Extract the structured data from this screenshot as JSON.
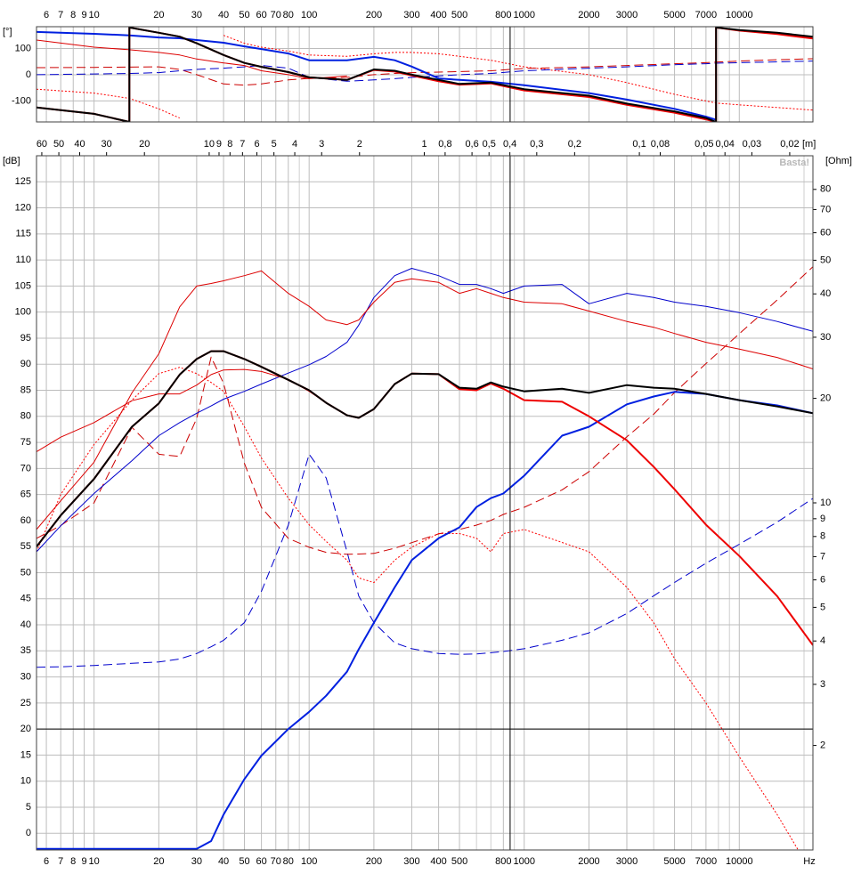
{
  "chart_data": [
    {
      "type": "line",
      "y_label": "[°]",
      "x_label_side": "top",
      "xscale": "log",
      "xlim": [
        5.4,
        22000
      ],
      "xticks": [
        6,
        7,
        8,
        9,
        10,
        20,
        30,
        40,
        50,
        60,
        70,
        80,
        100,
        200,
        300,
        400,
        500,
        800,
        1000,
        2000,
        3000,
        5000,
        7000,
        10000
      ],
      "xminor": [
        90,
        600,
        700,
        900,
        4000,
        6000,
        8000,
        9000,
        20000
      ],
      "ylim": [
        -180,
        183
      ],
      "yticks": [
        -100,
        0,
        100
      ],
      "grid": true,
      "cursor_x": 860,
      "x": [
        5.4,
        10,
        14.6,
        14.6,
        20,
        25,
        30,
        40,
        50,
        60,
        80,
        100,
        150,
        200,
        250,
        300,
        400,
        500,
        700,
        1000,
        2000,
        3000,
        5000,
        7000,
        7800,
        7800,
        10000,
        15000,
        22000
      ],
      "series": [
        {
          "color": "#ff0000",
          "width": 1,
          "dash": "dotted",
          "values": [
            -55,
            -70,
            -90,
            -90,
            -130,
            -165,
            null,
            150,
            120,
            105,
            90,
            75,
            70,
            80,
            85,
            85,
            80,
            70,
            55,
            30,
            0,
            -30,
            -75,
            -100,
            -108,
            -108,
            -115,
            -125,
            -135
          ]
        },
        {
          "color": "#cc0000",
          "width": 1,
          "dash": "dashed",
          "values": [
            27,
            28,
            29,
            29,
            30,
            20,
            0,
            -35,
            -40,
            -35,
            -20,
            -14,
            -10,
            0,
            5,
            8,
            10,
            12,
            15,
            24,
            30,
            35,
            42,
            46,
            48,
            48,
            52,
            57,
            61
          ]
        },
        {
          "color": "#0000cc",
          "width": 1,
          "dash": "dashed",
          "values": [
            0,
            3,
            5,
            5,
            8,
            15,
            20,
            25,
            30,
            35,
            25,
            -10,
            -25,
            -20,
            -15,
            -10,
            -5,
            0,
            5,
            15,
            25,
            30,
            38,
            42,
            44,
            44,
            46,
            49,
            52
          ]
        },
        {
          "color": "#dd0000",
          "width": 1,
          "dash": "solid",
          "values": [
            132,
            105,
            95,
            95,
            85,
            75,
            60,
            45,
            35,
            15,
            0,
            -15,
            -5,
            null,
            null,
            null,
            null,
            null,
            null,
            null,
            null,
            null,
            null,
            null,
            null,
            null,
            null,
            null,
            null
          ]
        },
        {
          "color": "#0020e0",
          "width": 2,
          "dash": "solid",
          "values": [
            163,
            156,
            150,
            150,
            142,
            139,
            132,
            122,
            108,
            98,
            81,
            55,
            55,
            68,
            55,
            31,
            -14,
            -20,
            -27,
            -40,
            -70,
            -95,
            -130,
            -160,
            -172,
            null,
            null,
            null,
            null
          ]
        },
        {
          "color": "#ee0000",
          "width": 2,
          "dash": "solid",
          "values": [
            -125,
            -149,
            -180,
            180,
            160,
            145,
            120,
            75,
            45,
            30,
            10,
            -10,
            -20,
            18,
            12,
            -3,
            -25,
            -38,
            -33,
            -60,
            -85,
            -115,
            -145,
            -170,
            -180,
            180,
            168,
            155,
            138
          ]
        },
        {
          "color": "#000000",
          "width": 2,
          "dash": "solid",
          "values": [
            -125,
            -149,
            -180,
            180,
            160,
            145,
            120,
            75,
            45,
            30,
            10,
            -10,
            -20,
            20,
            15,
            0,
            -20,
            -35,
            -30,
            -55,
            -80,
            -110,
            -140,
            -165,
            -180,
            180,
            170,
            160,
            145
          ]
        }
      ]
    },
    {
      "type": "line",
      "y_label": "[dB]",
      "y2_label": "[Ohm]",
      "x2_label": "[m]",
      "x_label": "Hz",
      "watermark": "Basta!",
      "x_label_side": "bottom",
      "xscale": "log",
      "xlim": [
        5.4,
        22000
      ],
      "xticks": [
        6,
        7,
        8,
        9,
        10,
        20,
        30,
        40,
        50,
        60,
        70,
        80,
        100,
        200,
        300,
        400,
        500,
        800,
        1000,
        2000,
        3000,
        5000,
        7000,
        10000
      ],
      "xminor": [
        90,
        600,
        700,
        900,
        4000,
        6000,
        8000,
        9000,
        20000
      ],
      "x2lim": [
        63.5,
        0.0156
      ],
      "x2ticks": [
        60,
        50,
        40,
        30,
        20,
        10,
        9,
        8,
        7,
        6,
        5,
        4,
        3,
        2,
        1,
        {
          "value": 0.8,
          "label": "0,8"
        },
        {
          "value": 0.6,
          "label": "0,6"
        },
        {
          "value": 0.5,
          "label": "0,5"
        },
        {
          "value": 0.4,
          "label": "0,4"
        },
        {
          "value": 0.3,
          "label": "0,3"
        },
        {
          "value": 0.2,
          "label": "0,2"
        },
        {
          "value": 0.1,
          "label": "0,1"
        },
        {
          "value": 0.08,
          "label": "0,08"
        },
        {
          "value": 0.05,
          "label": "0,05"
        },
        {
          "value": 0.04,
          "label": "0,04"
        },
        {
          "value": 0.03,
          "label": "0,03"
        },
        {
          "value": 0.02,
          "label": "0,02"
        }
      ],
      "ylim": [
        -3.2,
        130
      ],
      "yticks": [
        0,
        5,
        10,
        15,
        20,
        25,
        30,
        35,
        40,
        45,
        50,
        55,
        60,
        65,
        70,
        75,
        80,
        85,
        90,
        95,
        100,
        105,
        110,
        115,
        120,
        125
      ],
      "y2scale": "log",
      "y2lim": [
        1,
        100
      ],
      "y2ticks": [
        2,
        3,
        4,
        5,
        6,
        7,
        8,
        9,
        10,
        20,
        30,
        40,
        50,
        60,
        70,
        80
      ],
      "grid": true,
      "cursor_x": 860,
      "hline_y": 20,
      "x": [
        5.4,
        7,
        10,
        15,
        20,
        25,
        30,
        35,
        40,
        50,
        60,
        80,
        100,
        120,
        150,
        170,
        200,
        250,
        300,
        400,
        500,
        600,
        700,
        800,
        1000,
        1500,
        2000,
        3000,
        4000,
        5000,
        7000,
        10000,
        15000,
        22000
      ],
      "series": [
        {
          "color": "#0000cc",
          "width": 1,
          "dash": "dashed",
          "axis": "y2",
          "values": [
            3.36,
            3.37,
            3.4,
            3.45,
            3.48,
            3.55,
            3.68,
            3.85,
            4.02,
            4.52,
            5.56,
            8.63,
            13.8,
            11.8,
            7.24,
            5.39,
            4.52,
            3.95,
            3.8,
            3.68,
            3.66,
            3.67,
            3.7,
            3.73,
            3.8,
            4.02,
            4.22,
            4.8,
            5.4,
            5.9,
            6.7,
            7.6,
            8.8,
            10.3
          ]
        },
        {
          "color": "#cc0000",
          "width": 1,
          "dash": "dashed",
          "axis": "y2",
          "values": [
            7.9,
            8.6,
            10,
            16.5,
            13.8,
            13.6,
            17.5,
            26.3,
            22.1,
            13,
            9.7,
            7.9,
            7.45,
            7.2,
            7.11,
            7.12,
            7.15,
            7.4,
            7.68,
            8.14,
            8.38,
            8.63,
            8.9,
            9.26,
            9.71,
            10.9,
            12.3,
            15.5,
            18,
            20.8,
            25.2,
            30.7,
            38.4,
            47.9
          ]
        },
        {
          "color": "#ff0000",
          "width": 1,
          "dash": "dotted",
          "values": [
            54,
            65,
            74.6,
            83.1,
            88.2,
            89.4,
            88.2,
            86.5,
            84.8,
            78,
            72,
            64.3,
            59.2,
            56,
            52.4,
            49,
            48.1,
            52.4,
            54.9,
            57.5,
            57.5,
            56.6,
            54,
            57.5,
            58.3,
            55.8,
            54,
            47.2,
            40.4,
            33.5,
            25,
            14.7,
            3.6,
            -8
          ]
        },
        {
          "color": "#0000cc",
          "width": 1,
          "dash": "solid",
          "values": [
            54,
            59,
            65.2,
            71.5,
            76.3,
            78.8,
            80.6,
            82,
            83.3,
            84.8,
            86.2,
            88.3,
            89.9,
            91.5,
            94.2,
            97.5,
            102.8,
            107,
            108.4,
            107,
            105.3,
            105.3,
            104.5,
            103.6,
            105,
            105.3,
            101.6,
            103.6,
            102.8,
            101.9,
            101.1,
            99.9,
            98.2,
            96.3
          ]
        },
        {
          "color": "#dd0000",
          "width": 1,
          "dash": "solid",
          "values": [
            58.3,
            63.8,
            71.2,
            84.5,
            92,
            101,
            105,
            105.5,
            106,
            107,
            107.9,
            103.6,
            101.1,
            98.5,
            97.6,
            98.5,
            101.9,
            105.7,
            106.4,
            105.7,
            103.6,
            104.5,
            103.6,
            102.8,
            101.9,
            101.6,
            100.2,
            98.2,
            97.1,
            95.9,
            94.2,
            92.9,
            91.3,
            89.1
          ]
        },
        {
          "color": "#dd0000",
          "width": 1,
          "dash": "solid",
          "values": [
            73.2,
            76,
            78.8,
            83,
            84.3,
            84.3,
            86,
            88,
            88.9,
            89,
            88.6,
            87.1,
            84.8,
            82.6,
            80.2,
            79.7,
            null,
            null,
            null,
            null,
            null,
            null,
            null,
            null,
            null,
            null,
            null,
            null,
            null,
            null,
            null,
            null,
            null,
            null
          ]
        },
        {
          "color": "#0020e0",
          "width": 2,
          "dash": "solid",
          "values": [
            -3,
            -3,
            -3,
            -3,
            -3,
            -3,
            -3,
            -1.5,
            3.6,
            10.4,
            14.9,
            20,
            23.3,
            26.4,
            31,
            35.3,
            40.4,
            47.2,
            52.4,
            56.6,
            58.7,
            62.6,
            64.3,
            65.2,
            68.6,
            76.3,
            78,
            82.3,
            83.8,
            84.7,
            84.3,
            83.1,
            82.1,
            80.6
          ]
        },
        {
          "color": "#ee0000",
          "width": 2,
          "dash": "solid",
          "values": [
            55,
            61,
            68,
            78,
            82.5,
            88,
            91,
            92.5,
            92.5,
            91,
            89.5,
            87,
            85,
            82.6,
            80.2,
            79.7,
            81.4,
            86.2,
            88.2,
            88.1,
            85.2,
            85,
            86.3,
            85.3,
            83.1,
            82.8,
            80,
            75.4,
            70.3,
            66,
            59.2,
            53.2,
            45.5,
            36.1
          ]
        },
        {
          "color": "#000000",
          "width": 2,
          "dash": "solid",
          "values": [
            55,
            61,
            68,
            78,
            82.5,
            88,
            91,
            92.5,
            92.5,
            91,
            89.5,
            87,
            85,
            82.6,
            80.2,
            79.7,
            81.4,
            86.2,
            88.2,
            88.1,
            85.5,
            85.3,
            86.5,
            85.7,
            84.8,
            85.3,
            84.5,
            86,
            85.5,
            85.3,
            84.3,
            83.1,
            81.9,
            80.6
          ]
        }
      ]
    }
  ]
}
